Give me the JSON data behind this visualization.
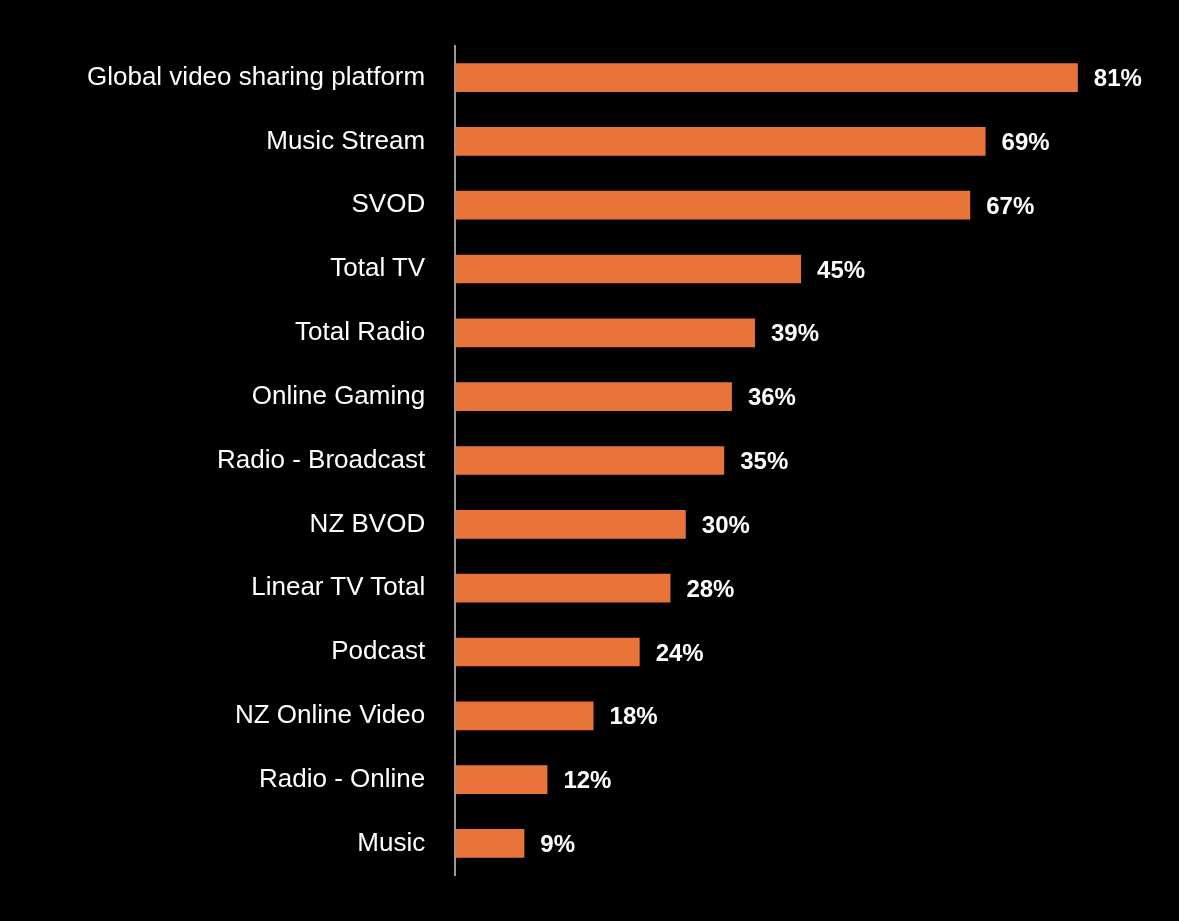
{
  "chart_data": {
    "type": "bar",
    "orientation": "horizontal",
    "categories": [
      "Global video sharing platform",
      "Music Stream",
      "SVOD",
      "Total TV",
      "Total Radio",
      "Online Gaming",
      "Radio - Broadcast",
      "NZ BVOD",
      "Linear TV Total",
      "Podcast",
      "NZ Online Video",
      "Radio - Online",
      "Music"
    ],
    "values": [
      81,
      69,
      67,
      45,
      39,
      36,
      35,
      30,
      28,
      24,
      18,
      12,
      9
    ],
    "value_labels": [
      "81%",
      "69%",
      "67%",
      "45%",
      "39%",
      "36%",
      "35%",
      "30%",
      "28%",
      "24%",
      "18%",
      "12%",
      "9%"
    ],
    "color": "#e9743a",
    "legend": false
  }
}
